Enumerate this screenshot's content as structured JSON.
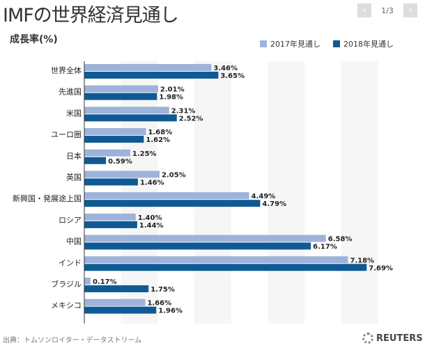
{
  "header": {
    "title": "IMFの世界経済見通し",
    "page": "1/3",
    "prev": "‹",
    "next": "›"
  },
  "source": "出典：トムソンロイター・データストリーム",
  "logo": "REUTERS",
  "colors": {
    "s2017": "#9db3dc",
    "s2018": "#0f5a94"
  },
  "chart_data": {
    "type": "bar",
    "orientation": "horizontal",
    "ylabel": "成長率(%)",
    "categories": [
      "世界全体",
      "先進国",
      "米国",
      "ユーロ圏",
      "日本",
      "英国",
      "新興国・発展途上国",
      "ロシア",
      "中国",
      "インド",
      "ブラジル",
      "メキシコ"
    ],
    "series": [
      {
        "name": "2017年見通し",
        "values": [
          3.46,
          2.01,
          2.31,
          1.68,
          1.25,
          2.05,
          4.49,
          1.4,
          6.58,
          7.18,
          0.17,
          1.66
        ],
        "labels": [
          "3.46%",
          "2.01%",
          "2.31%",
          "1.68%",
          "1.25%",
          "2.05%",
          "4.49%",
          "1.40%",
          "6.58%",
          "7.18%",
          "0.17%",
          "1.66%"
        ]
      },
      {
        "name": "2018年見通し",
        "values": [
          3.65,
          1.98,
          2.52,
          1.62,
          0.59,
          1.46,
          4.79,
          1.44,
          6.17,
          7.69,
          1.75,
          1.96
        ],
        "labels": [
          "3.65%",
          "1.98%",
          "2.52%",
          "1.62%",
          "0.59%",
          "1.46%",
          "4.79%",
          "1.44%",
          "6.17%",
          "7.69%",
          "1.75%",
          "1.96%"
        ]
      }
    ],
    "xlim": [
      0,
      8
    ],
    "grid": "alternating bands",
    "legend": "top-right"
  }
}
